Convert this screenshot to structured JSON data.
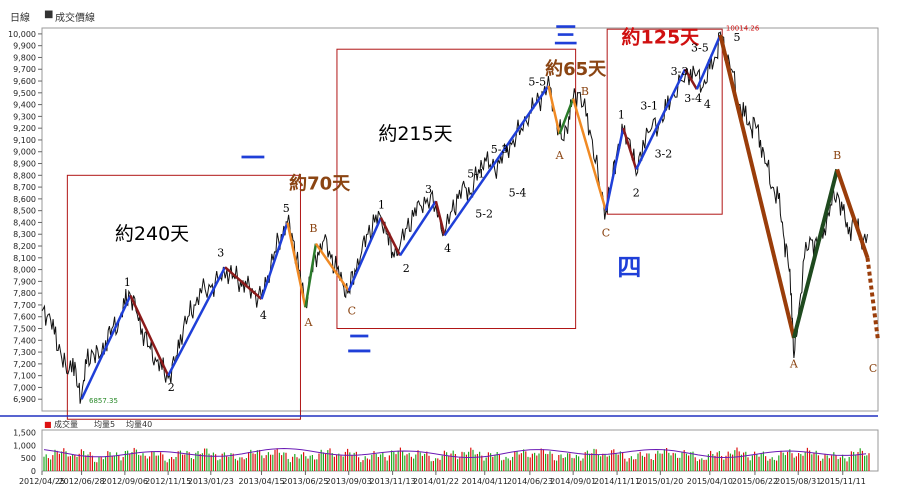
{
  "header": {
    "panel_label": "日線",
    "legend_marker": "■",
    "legend_label": "成交價線"
  },
  "volume_legend": {
    "marker": "■",
    "items": [
      "成交量",
      "均量5",
      "均量40"
    ]
  },
  "colors": {
    "price": "#111111",
    "impulse": "#1f3fd8",
    "correction": "#8b1a1a",
    "orange": "#f08a24",
    "green": "#2a7a2a",
    "dark_green": "#1f4a1f",
    "brown": "#9a3d0a",
    "box": "#b01515",
    "baseline": "#2030c0",
    "vol_red": "#d11",
    "vol_green": "#2a2",
    "vol_ma": "#6a1bb5"
  },
  "chart_data": {
    "type": "line",
    "title": "",
    "ylim": [
      6800,
      10050
    ],
    "y_ticks": [
      6900,
      7000,
      7100,
      7200,
      7300,
      7400,
      7500,
      7600,
      7700,
      7800,
      7900,
      8000,
      8100,
      8200,
      8300,
      8400,
      8500,
      8600,
      8700,
      8800,
      8900,
      9000,
      9100,
      9200,
      9300,
      9400,
      9500,
      9600,
      9700,
      9800,
      9900,
      10000
    ],
    "y_tick_labels": [
      "6,900",
      "7,000",
      "7,100",
      "7,200",
      "7,300",
      "7,400",
      "7,500",
      "7,600",
      "7,700",
      "7,800",
      "7,900",
      "8,000",
      "8,100",
      "8,200",
      "8,300",
      "8,400",
      "8,500",
      "8,600",
      "8,700",
      "8,800",
      "8,900",
      "9,000",
      "9,100",
      "9,200",
      "9,300",
      "9,400",
      "9,500",
      "9,600",
      "9,700",
      "9,800",
      "9,900",
      "10,000"
    ],
    "x_range": [
      "2012/04/25",
      "2016/01/07"
    ],
    "x_ticks": [
      "2012/04/25",
      "2012/06/28",
      "2012/09/06",
      "2012/11/15",
      "2013/01/23",
      "2013/04/15",
      "2013/06/25",
      "2013/09/03",
      "2013/11/13",
      "2014/01/22",
      "2014/04/11",
      "2014/06/23",
      "2014/09/01",
      "2014/11/11",
      "2015/01/20",
      "2015/04/10",
      "2015/06/22",
      "2015/08/31",
      "2015/11/11"
    ],
    "close_path": [
      [
        "2012/04/25",
        7650
      ],
      [
        "2012/05/05",
        7620
      ],
      [
        "2012/05/15",
        7450
      ],
      [
        "2012/05/25",
        7300
      ],
      [
        "2012/06/04",
        7120
      ],
      [
        "2012/06/14",
        7250
      ],
      [
        "2012/06/22",
        7000
      ],
      [
        "2012/06/28",
        6930
      ],
      [
        "2012/07/06",
        7200
      ],
      [
        "2012/07/16",
        7300
      ],
      [
        "2012/07/26",
        7250
      ],
      [
        "2012/08/06",
        7400
      ],
      [
        "2012/08/16",
        7500
      ],
      [
        "2012/08/27",
        7550
      ],
      [
        "2012/09/06",
        7700
      ],
      [
        "2012/09/14",
        7800
      ],
      [
        "2012/09/24",
        7650
      ],
      [
        "2012/10/04",
        7500
      ],
      [
        "2012/10/15",
        7350
      ],
      [
        "2012/10/25",
        7250
      ],
      [
        "2012/11/05",
        7150
      ],
      [
        "2012/11/15",
        7080
      ],
      [
        "2012/11/26",
        7200
      ],
      [
        "2012/12/05",
        7450
      ],
      [
        "2012/12/17",
        7600
      ],
      [
        "2012/12/27",
        7700
      ],
      [
        "2013/01/08",
        7800
      ],
      [
        "2013/01/23",
        7850
      ],
      [
        "2013/02/04",
        7900
      ],
      [
        "2013/02/18",
        8000
      ],
      [
        "2013/03/01",
        7950
      ],
      [
        "2013/03/12",
        7900
      ],
      [
        "2013/03/22",
        7850
      ],
      [
        "2013/04/02",
        7800
      ],
      [
        "2013/04/15",
        7750
      ],
      [
        "2013/04/25",
        7950
      ],
      [
        "2013/05/06",
        8150
      ],
      [
        "2013/05/17",
        8300
      ],
      [
        "2013/05/27",
        8400
      ],
      [
        "2013/06/05",
        8250
      ],
      [
        "2013/06/14",
        8000
      ],
      [
        "2013/06/25",
        7700
      ],
      [
        "2013/07/05",
        8000
      ],
      [
        "2013/07/15",
        8150
      ],
      [
        "2013/07/25",
        8250
      ],
      [
        "2013/08/05",
        8100
      ],
      [
        "2013/08/15",
        8000
      ],
      [
        "2013/08/26",
        7850
      ],
      [
        "2013/09/03",
        7820
      ],
      [
        "2013/09/13",
        8000
      ],
      [
        "2013/09/24",
        8150
      ],
      [
        "2013/10/04",
        8300
      ],
      [
        "2013/10/15",
        8400
      ],
      [
        "2013/10/25",
        8450
      ],
      [
        "2013/11/05",
        8300
      ],
      [
        "2013/11/13",
        8150
      ],
      [
        "2013/11/25",
        8200
      ],
      [
        "2013/12/06",
        8350
      ],
      [
        "2013/12/17",
        8450
      ],
      [
        "2013/12/27",
        8550
      ],
      [
        "2014/01/08",
        8600
      ],
      [
        "2014/01/22",
        8550
      ],
      [
        "2014/02/05",
        8300
      ],
      [
        "2014/02/17",
        8500
      ],
      [
        "2014/02/27",
        8600
      ],
      [
        "2014/03/10",
        8700
      ],
      [
        "2014/03/20",
        8650
      ],
      [
        "2014/04/01",
        8850
      ],
      [
        "2014/04/11",
        8950
      ],
      [
        "2014/04/22",
        8850
      ],
      [
        "2014/05/05",
        8900
      ],
      [
        "2014/05/15",
        9000
      ],
      [
        "2014/05/27",
        9100
      ],
      [
        "2014/06/09",
        9200
      ],
      [
        "2014/06/23",
        9350
      ],
      [
        "2014/07/03",
        9400
      ],
      [
        "2014/07/15",
        9500
      ],
      [
        "2014/07/25",
        9550
      ],
      [
        "2014/08/05",
        9250
      ],
      [
        "2014/08/15",
        9100
      ],
      [
        "2014/08/25",
        9300
      ],
      [
        "2014/09/01",
        9450
      ],
      [
        "2014/09/10",
        9500
      ],
      [
        "2014/09/22",
        9300
      ],
      [
        "2014/10/02",
        9100
      ],
      [
        "2014/10/14",
        8700
      ],
      [
        "2014/10/24",
        8500
      ],
      [
        "2014/11/04",
        8800
      ],
      [
        "2014/11/11",
        9000
      ],
      [
        "2014/11/21",
        9150
      ],
      [
        "2014/12/02",
        9100
      ],
      [
        "2014/12/12",
        8800
      ],
      [
        "2014/12/23",
        9100
      ],
      [
        "2015/01/06",
        9200
      ],
      [
        "2015/01/20",
        9250
      ],
      [
        "2015/01/30",
        9350
      ],
      [
        "2015/02/10",
        9500
      ],
      [
        "2015/02/25",
        9600
      ],
      [
        "2015/03/10",
        9700
      ],
      [
        "2015/03/20",
        9650
      ],
      [
        "2015/03/30",
        9550
      ],
      [
        "2015/04/10",
        9700
      ],
      [
        "2015/04/20",
        9800
      ],
      [
        "2015/04/27",
        10014
      ],
      [
        "2015/05/06",
        9850
      ],
      [
        "2015/05/15",
        9700
      ],
      [
        "2015/05/27",
        9400
      ],
      [
        "2015/06/05",
        9300
      ],
      [
        "2015/06/15",
        9200
      ],
      [
        "2015/06/22",
        9250
      ],
      [
        "2015/07/01",
        9100
      ],
      [
        "2015/07/10",
        8900
      ],
      [
        "2015/07/20",
        8700
      ],
      [
        "2015/07/30",
        8600
      ],
      [
        "2015/08/07",
        8300
      ],
      [
        "2015/08/14",
        8100
      ],
      [
        "2015/08/20",
        7800
      ],
      [
        "2015/08/24",
        7250
      ],
      [
        "2015/08/31",
        7600
      ],
      [
        "2015/09/10",
        8100
      ],
      [
        "2015/09/21",
        8250
      ],
      [
        "2015/10/01",
        8200
      ],
      [
        "2015/10/12",
        8350
      ],
      [
        "2015/10/22",
        8550
      ],
      [
        "2015/11/02",
        8650
      ],
      [
        "2015/11/11",
        8500
      ],
      [
        "2015/11/20",
        8300
      ],
      [
        "2015/11/30",
        8450
      ],
      [
        "2015/12/10",
        8250
      ],
      [
        "2015/12/21",
        8300
      ]
    ],
    "wave_lines": [
      {
        "c": "impulse",
        "pts": [
          [
            "2012/06/28",
            6900
          ],
          [
            "2012/09/15",
            7780
          ]
        ]
      },
      {
        "c": "correction",
        "pts": [
          [
            "2012/09/15",
            7780
          ],
          [
            "2012/11/15",
            7100
          ]
        ]
      },
      {
        "c": "impulse",
        "pts": [
          [
            "2012/11/15",
            7100
          ],
          [
            "2013/02/15",
            8020
          ]
        ]
      },
      {
        "c": "correction",
        "pts": [
          [
            "2013/02/15",
            8020
          ],
          [
            "2013/04/15",
            7750
          ]
        ]
      },
      {
        "c": "impulse",
        "pts": [
          [
            "2013/04/15",
            7750
          ],
          [
            "2013/05/27",
            8400
          ]
        ]
      },
      {
        "c": "orange",
        "pts": [
          [
            "2013/05/27",
            8400
          ],
          [
            "2013/06/25",
            7680
          ]
        ]
      },
      {
        "c": "green",
        "pts": [
          [
            "2013/06/25",
            7680
          ],
          [
            "2013/07/12",
            8220
          ]
        ]
      },
      {
        "c": "orange",
        "pts": [
          [
            "2013/07/12",
            8220
          ],
          [
            "2013/09/03",
            7820
          ]
        ]
      },
      {
        "c": "impulse",
        "pts": [
          [
            "2013/09/03",
            7820
          ],
          [
            "2013/10/25",
            8440
          ]
        ]
      },
      {
        "c": "correction",
        "pts": [
          [
            "2013/10/25",
            8440
          ],
          [
            "2013/11/25",
            8120
          ]
        ]
      },
      {
        "c": "impulse",
        "pts": [
          [
            "2013/11/25",
            8120
          ],
          [
            "2014/01/22",
            8580
          ]
        ]
      },
      {
        "c": "correction",
        "pts": [
          [
            "2014/01/22",
            8580
          ],
          [
            "2014/02/05",
            8290
          ]
        ]
      },
      {
        "c": "impulse",
        "pts": [
          [
            "2014/02/05",
            8290
          ],
          [
            "2014/07/23",
            9560
          ]
        ]
      },
      {
        "c": "orange",
        "pts": [
          [
            "2014/07/23",
            9560
          ],
          [
            "2014/08/10",
            9150
          ]
        ]
      },
      {
        "c": "green",
        "pts": [
          [
            "2014/08/10",
            9150
          ],
          [
            "2014/09/01",
            9450
          ]
        ]
      },
      {
        "c": "orange",
        "pts": [
          [
            "2014/09/01",
            9450
          ],
          [
            "2014/10/24",
            8500
          ]
        ]
      },
      {
        "c": "impulse",
        "pts": [
          [
            "2014/10/24",
            8500
          ],
          [
            "2014/11/21",
            9200
          ]
        ]
      },
      {
        "c": "correction",
        "pts": [
          [
            "2014/11/21",
            9200
          ],
          [
            "2014/12/12",
            8850
          ]
        ]
      },
      {
        "c": "impulse",
        "pts": [
          [
            "2014/12/12",
            8850
          ],
          [
            "2015/03/01",
            9700
          ]
        ]
      },
      {
        "c": "correction",
        "pts": [
          [
            "2015/03/01",
            9700
          ],
          [
            "2015/03/20",
            9530
          ]
        ]
      },
      {
        "c": "impulse",
        "pts": [
          [
            "2015/03/20",
            9530
          ],
          [
            "2015/04/27",
            9990
          ]
        ]
      },
      {
        "c": "brown",
        "w": 4,
        "pts": [
          [
            "2015/04/27",
            9990
          ],
          [
            "2015/08/24",
            7420
          ]
        ]
      },
      {
        "c": "dark_green",
        "w": 4,
        "pts": [
          [
            "2015/08/24",
            7420
          ],
          [
            "2015/11/02",
            8850
          ]
        ]
      },
      {
        "c": "brown",
        "w": 4,
        "pts": [
          [
            "2015/11/02",
            8850
          ],
          [
            "2015/12/21",
            8100
          ]
        ]
      },
      {
        "c": "brown",
        "w": 4,
        "dash": true,
        "pts": [
          [
            "2015/12/21",
            8100
          ],
          [
            "2016/01/07",
            7400
          ]
        ]
      }
    ],
    "boxes": [
      {
        "label": "約240天",
        "x0": "2012/06/05",
        "x1": "2013/06/17",
        "y0": 6730,
        "y1": 8800
      },
      {
        "label": "約215天",
        "x0": "2013/08/15",
        "x1": "2014/09/05",
        "y0": 7500,
        "y1": 9870
      },
      {
        "label": "約125天",
        "x0": "2014/10/26",
        "x1": "2015/04/30",
        "y0": 8470,
        "y1": 10040
      }
    ],
    "wave_labels": [
      {
        "text": "1",
        "x": "2012/09/10",
        "y": 7860,
        "c": "#000"
      },
      {
        "text": "2",
        "x": "2012/11/20",
        "y": 6970,
        "c": "#000"
      },
      {
        "text": "3",
        "x": "2013/02/08",
        "y": 8110,
        "c": "#000"
      },
      {
        "text": "4",
        "x": "2013/04/18",
        "y": 7580,
        "c": "#000"
      },
      {
        "text": "5",
        "x": "2013/05/25",
        "y": 8490,
        "c": "#000"
      },
      {
        "text": "B",
        "x": "2013/07/08",
        "y": 8320,
        "c": "#8b4513"
      },
      {
        "text": "A",
        "x": "2013/06/30",
        "y": 7520,
        "c": "#8b4513"
      },
      {
        "text": "C",
        "x": "2013/09/08",
        "y": 7620,
        "c": "#8b4513"
      },
      {
        "text": "1",
        "x": "2013/10/26",
        "y": 8520,
        "c": "#000"
      },
      {
        "text": "2",
        "x": "2013/12/05",
        "y": 7980,
        "c": "#000"
      },
      {
        "text": "3",
        "x": "2014/01/10",
        "y": 8650,
        "c": "#000"
      },
      {
        "text": "4",
        "x": "2014/02/10",
        "y": 8150,
        "c": "#000"
      },
      {
        "text": "5-1",
        "x": "2014/03/28",
        "y": 8780,
        "c": "#000"
      },
      {
        "text": "5-2",
        "x": "2014/04/10",
        "y": 8440,
        "c": "#000"
      },
      {
        "text": "5-3",
        "x": "2014/05/05",
        "y": 8990,
        "c": "#000"
      },
      {
        "text": "5-4",
        "x": "2014/06/03",
        "y": 8620,
        "c": "#000"
      },
      {
        "text": "5-5",
        "x": "2014/07/05",
        "y": 9560,
        "c": "#000"
      },
      {
        "text": "A",
        "x": "2014/08/10",
        "y": 8940,
        "c": "#8b4513"
      },
      {
        "text": "B",
        "x": "2014/09/20",
        "y": 9480,
        "c": "#8b4513"
      },
      {
        "text": "C",
        "x": "2014/10/24",
        "y": 8280,
        "c": "#8b4513"
      },
      {
        "text": "1",
        "x": "2014/11/18",
        "y": 9280,
        "c": "#000"
      },
      {
        "text": "2",
        "x": "2014/12/12",
        "y": 8620,
        "c": "#000"
      },
      {
        "text": "3-1",
        "x": "2015/01/02",
        "y": 9360,
        "c": "#000"
      },
      {
        "text": "3-2",
        "x": "2015/01/25",
        "y": 8950,
        "c": "#000"
      },
      {
        "text": "3-3",
        "x": "2015/02/20",
        "y": 9650,
        "c": "#000"
      },
      {
        "text": "3-4",
        "x": "2015/03/14",
        "y": 9420,
        "c": "#000"
      },
      {
        "text": "3-5",
        "x": "2015/03/25",
        "y": 9850,
        "c": "#000"
      },
      {
        "text": "4",
        "x": "2015/04/06",
        "y": 9370,
        "c": "#000"
      },
      {
        "text": "5",
        "x": "2015/05/24",
        "y": 9940,
        "c": "#000"
      },
      {
        "text": "A",
        "x": "2015/08/24",
        "y": 7170,
        "c": "#8b4513"
      },
      {
        "text": "B",
        "x": "2015/11/02",
        "y": 8940,
        "c": "#8b4513"
      },
      {
        "text": "C",
        "x": "2015/12/30",
        "y": 7130,
        "c": "#8b4513"
      }
    ],
    "big_labels": [
      {
        "text": "約70天",
        "x": "2013/07/18",
        "y": 8680,
        "c": "#8b4513",
        "size": 18
      },
      {
        "text": "約65天",
        "x": "2014/09/05",
        "y": 9650,
        "c": "#8b4513",
        "size": 18
      },
      {
        "text": "一",
        "x": "2013/04/01",
        "y": 8880,
        "c": "#1f3fd8",
        "size": 24
      },
      {
        "text": "二",
        "x": "2013/09/20",
        "y": 7300,
        "c": "#1f3fd8",
        "size": 24
      },
      {
        "text": "三",
        "x": "2014/08/20",
        "y": 9920,
        "c": "#1f3fd8",
        "size": 24
      },
      {
        "text": "四",
        "x": "2014/12/01",
        "y": 7950,
        "c": "#1f3fd8",
        "size": 24
      }
    ],
    "annotations": {
      "low": "6857.35",
      "high": "10014.26"
    },
    "volume": {
      "ylim": [
        0,
        1600
      ],
      "ticks": [
        0,
        500,
        1000,
        1500
      ],
      "tick_labels": [
        "0",
        "500",
        "1,000",
        "1,500"
      ]
    }
  }
}
